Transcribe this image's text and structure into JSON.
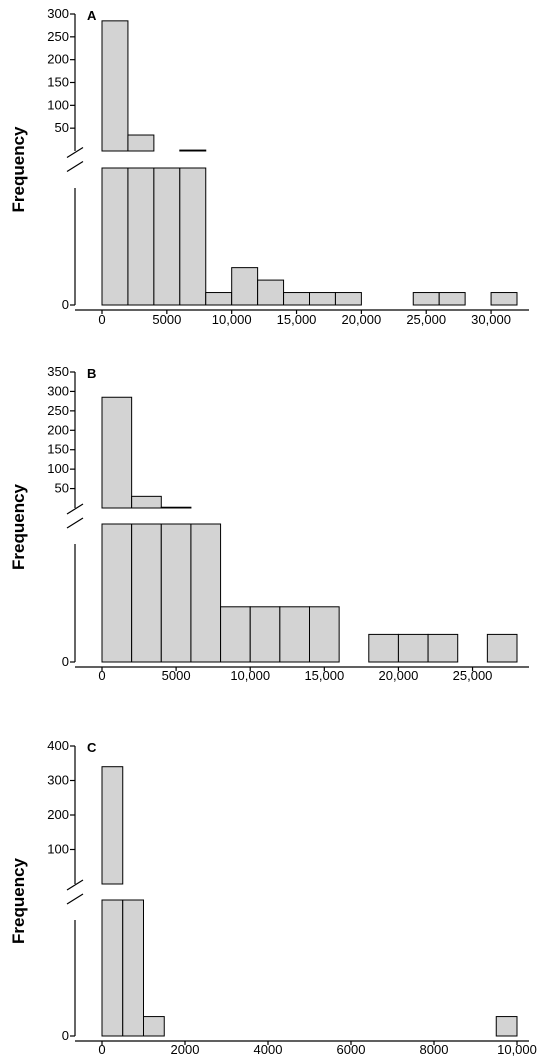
{
  "figure": {
    "bar_color": "#d3d3d3",
    "edge_color": "#000000"
  },
  "chart_data": [
    {
      "type": "bar",
      "panel_label": "A",
      "ylabel": "Frequency",
      "y_axis_break": true,
      "upper_ylim": [
        0,
        300
      ],
      "upper_yticks": [
        300,
        250,
        200,
        150,
        100,
        50
      ],
      "lower_ylim": [
        0,
        11
      ],
      "lower_yticks": [
        0
      ],
      "xlim": [
        0,
        32000
      ],
      "xticks": [
        0,
        5000,
        10000,
        15000,
        20000,
        25000,
        30000
      ],
      "xtick_labels": [
        "0",
        "5000",
        "10,000",
        "15,000",
        "20,000",
        "25,000",
        "30,000"
      ],
      "bin_width": 2000,
      "bins": [
        {
          "x0": 0,
          "value": 285
        },
        {
          "x0": 2000,
          "value": 35
        },
        {
          "x0": 4000,
          "value": 11
        },
        {
          "x0": 6000,
          "value": 11,
          "upper_value": 2
        },
        {
          "x0": 8000,
          "value": 1
        },
        {
          "x0": 10000,
          "value": 3
        },
        {
          "x0": 12000,
          "value": 2
        },
        {
          "x0": 14000,
          "value": 1
        },
        {
          "x0": 16000,
          "value": 1
        },
        {
          "x0": 18000,
          "value": 1
        },
        {
          "x0": 24000,
          "value": 1
        },
        {
          "x0": 26000,
          "value": 1
        },
        {
          "x0": 30000,
          "value": 1
        }
      ]
    },
    {
      "type": "bar",
      "panel_label": "B",
      "ylabel": "Frequency",
      "y_axis_break": true,
      "upper_ylim": [
        0,
        350
      ],
      "upper_yticks": [
        350,
        300,
        250,
        200,
        150,
        100,
        50
      ],
      "lower_ylim": [
        0,
        5
      ],
      "lower_yticks": [
        0
      ],
      "xlim": [
        0,
        28000
      ],
      "xticks": [
        0,
        5000,
        10000,
        15000,
        20000,
        25000
      ],
      "xtick_labels": [
        "0",
        "5000",
        "10,000",
        "15,000",
        "20,000",
        "25,000"
      ],
      "bin_width": 2000,
      "bins": [
        {
          "x0": 0,
          "value": 285
        },
        {
          "x0": 2000,
          "value": 30
        },
        {
          "x0": 4000,
          "value": 5,
          "upper_value": 2
        },
        {
          "x0": 6000,
          "value": 5
        },
        {
          "x0": 8000,
          "value": 2
        },
        {
          "x0": 10000,
          "value": 2
        },
        {
          "x0": 12000,
          "value": 2
        },
        {
          "x0": 14000,
          "value": 2
        },
        {
          "x0": 18000,
          "value": 1
        },
        {
          "x0": 20000,
          "value": 1
        },
        {
          "x0": 22000,
          "value": 1
        },
        {
          "x0": 26000,
          "value": 1
        }
      ]
    },
    {
      "type": "bar",
      "panel_label": "C",
      "ylabel": "Frequency",
      "y_axis_break": true,
      "upper_ylim": [
        0,
        400
      ],
      "upper_yticks": [
        400,
        300,
        200,
        100
      ],
      "lower_ylim": [
        0,
        7
      ],
      "lower_yticks": [
        0
      ],
      "xlim": [
        0,
        10000
      ],
      "xticks": [
        0,
        2000,
        4000,
        6000,
        8000,
        10000
      ],
      "xtick_labels": [
        "0",
        "2000",
        "4000",
        "6000",
        "8000",
        "10,000"
      ],
      "bin_width": 500,
      "bins": [
        {
          "x0": 0,
          "value": 340
        },
        {
          "x0": 500,
          "value": 7
        },
        {
          "x0": 1000,
          "value": 1
        },
        {
          "x0": 9500,
          "value": 1
        }
      ]
    }
  ]
}
